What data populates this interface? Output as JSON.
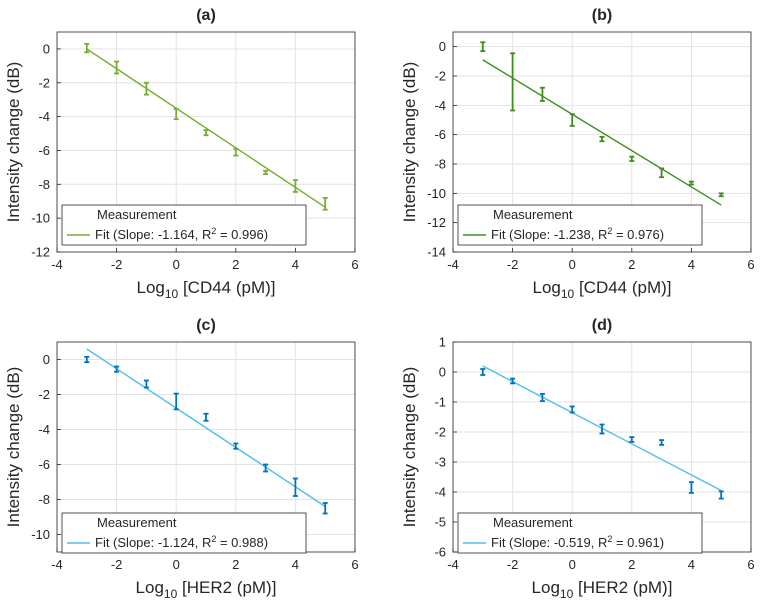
{
  "chart_data": [
    {
      "id": "a",
      "type": "scatter",
      "title": "(a)",
      "xlabel_prefix": "Log",
      "xlabel_sub": "10",
      "xlabel_suffix": " [CD44 (pM)]",
      "ylabel": "Intensity change (dB)",
      "xlim": [
        -4,
        6
      ],
      "ylim": [
        -12,
        1
      ],
      "xticks": [
        "-4",
        "-2",
        "0",
        "2",
        "4",
        "6"
      ],
      "yticks": [
        "0",
        "-2",
        "-4",
        "-6",
        "-8",
        "-10",
        "-12"
      ],
      "grid": true,
      "color": "#77AC30",
      "x": [
        -3,
        -2,
        -1,
        0,
        1,
        2,
        3,
        4,
        5
      ],
      "y": [
        0.05,
        -1.1,
        -2.35,
        -3.85,
        -4.95,
        -6.1,
        -7.3,
        -8.1,
        -9.15
      ],
      "err": [
        0.25,
        0.35,
        0.35,
        0.3,
        0.15,
        0.2,
        0.1,
        0.35,
        0.35
      ],
      "fit": {
        "x": [
          -3,
          5
        ],
        "y": [
          0.0,
          -9.35
        ]
      },
      "legend": {
        "measurement": "Measurement",
        "fit_prefix": "Fit (Slope: -1.164, R",
        "fit_sup": "2",
        "fit_suffix": " = 0.996)",
        "position": "bottom-left"
      }
    },
    {
      "id": "b",
      "type": "scatter",
      "title": "(b)",
      "xlabel_prefix": "Log",
      "xlabel_sub": "10",
      "xlabel_suffix": " [CD44 (pM)]",
      "ylabel": "Intensity change (dB)",
      "xlim": [
        -4,
        6
      ],
      "ylim": [
        -14,
        1
      ],
      "xticks": [
        "-4",
        "-2",
        "0",
        "2",
        "4",
        "6"
      ],
      "yticks": [
        "0",
        "-2",
        "-4",
        "-6",
        "-8",
        "-10",
        "-12",
        "-14"
      ],
      "grid": true,
      "color": "#3E8E1C",
      "x": [
        -3,
        -2,
        -1,
        0,
        1,
        2,
        3,
        4,
        5
      ],
      "y": [
        0.0,
        -2.4,
        -3.25,
        -5.0,
        -6.3,
        -7.65,
        -8.6,
        -9.3,
        -10.1
      ],
      "err": [
        0.3,
        1.95,
        0.45,
        0.4,
        0.15,
        0.15,
        0.3,
        0.1,
        0.1
      ],
      "fit": {
        "x": [
          -3,
          5
        ],
        "y": [
          -0.9,
          -10.8
        ]
      },
      "legend": {
        "measurement": "Measurement",
        "fit_prefix": "Fit (Slope: -1.238, R",
        "fit_sup": "2",
        "fit_suffix": " = 0.976)",
        "position": "bottom-left"
      }
    },
    {
      "id": "c",
      "type": "scatter",
      "title": "(c)",
      "xlabel_prefix": "Log",
      "xlabel_sub": "10",
      "xlabel_suffix": " [HER2 (pM)]",
      "ylabel": "Intensity change (dB)",
      "xlim": [
        -4,
        6
      ],
      "ylim": [
        -11,
        1
      ],
      "xticks": [
        "-4",
        "-2",
        "0",
        "2",
        "4",
        "6"
      ],
      "yticks": [
        "0",
        "-2",
        "-4",
        "-6",
        "-8",
        "-10"
      ],
      "grid": true,
      "color": "#0072BD",
      "x": [
        -3,
        -2,
        -1,
        0,
        1,
        2,
        3,
        4,
        5
      ],
      "y": [
        0.0,
        -0.55,
        -1.4,
        -2.4,
        -3.3,
        -4.95,
        -6.2,
        -7.3,
        -8.5
      ],
      "err": [
        0.15,
        0.15,
        0.2,
        0.45,
        0.2,
        0.15,
        0.2,
        0.5,
        0.3
      ],
      "fit": {
        "x": [
          -3,
          5
        ],
        "y": [
          0.6,
          -8.4
        ]
      },
      "fit_color": "#4DBEEE",
      "legend": {
        "measurement": "Measurement",
        "fit_prefix": "Fit (Slope: -1.124, R",
        "fit_sup": "2",
        "fit_suffix": " = 0.988)",
        "position": "bottom-left"
      }
    },
    {
      "id": "d",
      "type": "scatter",
      "title": "(d)",
      "xlabel_prefix": "Log",
      "xlabel_sub": "10",
      "xlabel_suffix": " [HER2 (pM)]",
      "ylabel": "Intensity change (dB)",
      "xlim": [
        -4,
        6
      ],
      "ylim": [
        -6,
        1
      ],
      "xticks": [
        "-4",
        "-2",
        "0",
        "2",
        "4",
        "6"
      ],
      "yticks": [
        "1",
        "0",
        "-1",
        "-2",
        "-3",
        "-4",
        "-5",
        "-6"
      ],
      "grid": true,
      "color": "#0072BD",
      "x": [
        -3,
        -2,
        -1,
        0,
        1,
        2,
        3,
        4,
        5
      ],
      "y": [
        0.0,
        -0.3,
        -0.85,
        -1.25,
        -1.9,
        -2.25,
        -2.35,
        -3.85,
        -4.1
      ],
      "err": [
        0.1,
        0.08,
        0.12,
        0.1,
        0.15,
        0.08,
        0.08,
        0.18,
        0.12
      ],
      "fit": {
        "x": [
          -3,
          5
        ],
        "y": [
          0.2,
          -3.95
        ]
      },
      "fit_color": "#4DBEEE",
      "legend": {
        "measurement": "Measurement",
        "fit_prefix": "Fit (Slope: -0.519, R",
        "fit_sup": "2",
        "fit_suffix": " = 0.961)",
        "position": "bottom-left"
      }
    }
  ]
}
